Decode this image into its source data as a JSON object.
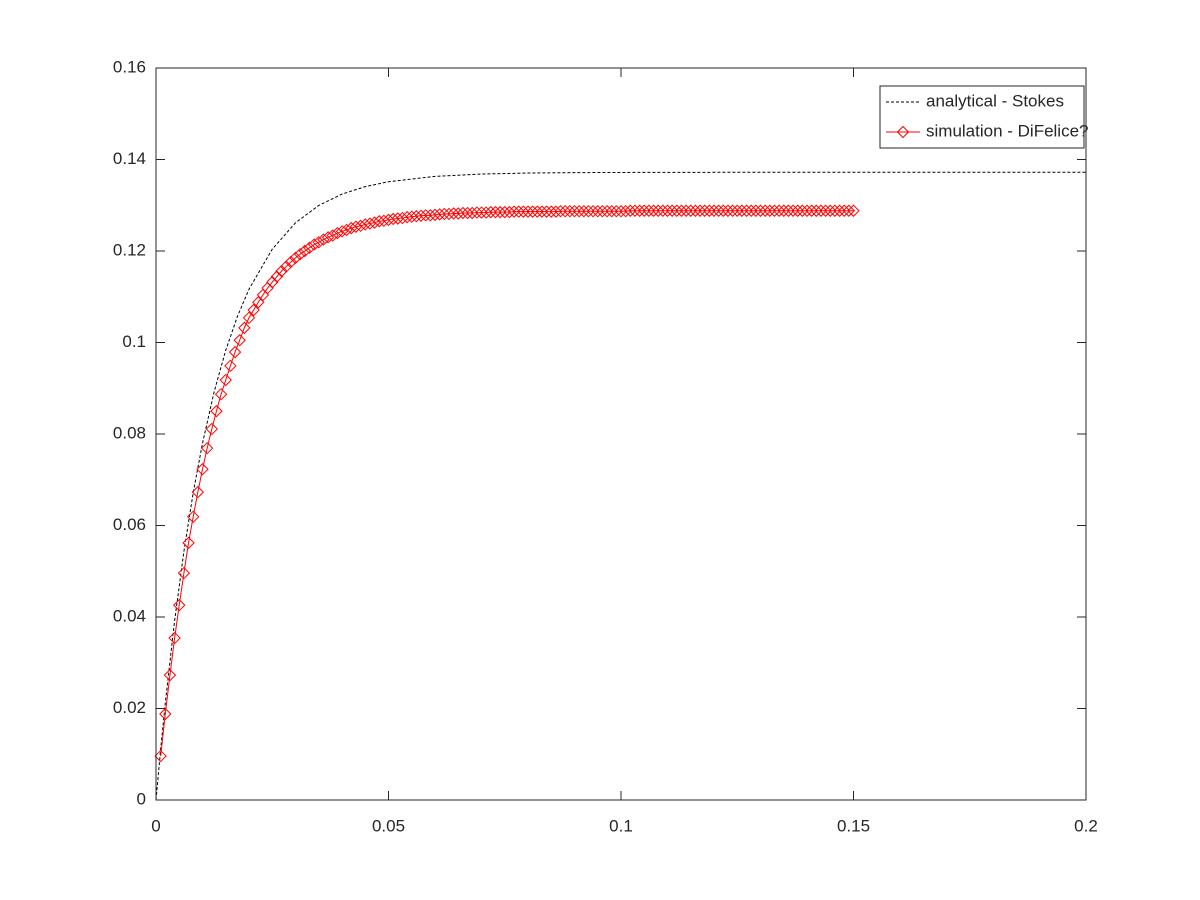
{
  "chart_data": {
    "type": "line",
    "xlim": [
      0,
      0.2
    ],
    "ylim": [
      0,
      0.16
    ],
    "xticks": [
      0,
      0.05,
      0.1,
      0.15,
      0.2
    ],
    "yticks": [
      0,
      0.02,
      0.04,
      0.06,
      0.08,
      0.1,
      0.12,
      0.14,
      0.16
    ],
    "legend": "northeast",
    "series": [
      {
        "name": "analytical - Stokes",
        "color": "#000000",
        "dash": true,
        "marker": "none",
        "x": [
          0,
          0.001,
          0.002,
          0.004,
          0.006,
          0.008,
          0.01,
          0.0125,
          0.015,
          0.0175,
          0.02,
          0.025,
          0.03,
          0.035,
          0.04,
          0.045,
          0.05,
          0.06,
          0.07,
          0.08,
          0.09,
          0.1,
          0.12,
          0.14,
          0.16,
          0.18,
          0.2
        ],
        "values": [
          0,
          0.01106,
          0.02123,
          0.03917,
          0.05433,
          0.06716,
          0.07798,
          0.08921,
          0.0983,
          0.10567,
          0.11165,
          0.12041,
          0.12617,
          0.12996,
          0.13244,
          0.13407,
          0.13514,
          0.13631,
          0.13682,
          0.13704,
          0.13713,
          0.13717,
          0.1372,
          0.1372,
          0.1372,
          0.1372,
          0.1372
        ]
      },
      {
        "name": "simulation - DiFelice?",
        "color": "#ff0000",
        "dash": false,
        "marker": "diamond",
        "x": [
          0.001,
          0.002,
          0.003,
          0.004,
          0.005,
          0.006,
          0.007,
          0.008,
          0.009,
          0.01,
          0.011,
          0.012,
          0.013,
          0.014,
          0.015,
          0.016,
          0.017,
          0.018,
          0.019,
          0.02,
          0.021,
          0.022,
          0.023,
          0.024,
          0.025,
          0.026,
          0.027,
          0.028,
          0.029,
          0.03,
          0.031,
          0.032,
          0.033,
          0.034,
          0.035,
          0.036,
          0.037,
          0.038,
          0.039,
          0.04,
          0.041,
          0.042,
          0.043,
          0.044,
          0.045,
          0.046,
          0.047,
          0.048,
          0.049,
          0.05,
          0.051,
          0.052,
          0.053,
          0.054,
          0.055,
          0.056,
          0.057,
          0.058,
          0.059,
          0.06,
          0.061,
          0.062,
          0.063,
          0.064,
          0.065,
          0.066,
          0.067,
          0.068,
          0.069,
          0.07,
          0.071,
          0.072,
          0.073,
          0.074,
          0.075,
          0.076,
          0.077,
          0.078,
          0.079,
          0.08,
          0.081,
          0.082,
          0.083,
          0.084,
          0.085,
          0.086,
          0.087,
          0.088,
          0.089,
          0.09,
          0.091,
          0.092,
          0.093,
          0.094,
          0.095,
          0.096,
          0.097,
          0.098,
          0.099,
          0.1,
          0.101,
          0.102,
          0.103,
          0.104,
          0.105,
          0.106,
          0.107,
          0.108,
          0.109,
          0.11,
          0.111,
          0.112,
          0.113,
          0.114,
          0.115,
          0.116,
          0.117,
          0.118,
          0.119,
          0.12,
          0.121,
          0.122,
          0.123,
          0.124,
          0.125,
          0.126,
          0.127,
          0.128,
          0.129,
          0.13,
          0.131,
          0.132,
          0.133,
          0.134,
          0.135,
          0.136,
          0.137,
          0.138,
          0.139,
          0.14,
          0.141,
          0.142,
          0.143,
          0.144,
          0.145,
          0.146,
          0.147,
          0.148,
          0.149,
          0.15
        ],
        "values": [
          0.0096,
          0.0188,
          0.0273,
          0.0354,
          0.0426,
          0.0496,
          0.0562,
          0.0619,
          0.0673,
          0.0723,
          0.0769,
          0.0811,
          0.085,
          0.0887,
          0.0918,
          0.0949,
          0.0979,
          0.1005,
          0.1032,
          0.1054,
          0.1071,
          0.1088,
          0.1104,
          0.1119,
          0.1132,
          0.1144,
          0.1156,
          0.1166,
          0.1176,
          0.1185,
          0.1193,
          0.12,
          0.1207,
          0.1214,
          0.1219,
          0.1225,
          0.123,
          0.1234,
          0.1239,
          0.1243,
          0.1246,
          0.125,
          0.1253,
          0.1255,
          0.1258,
          0.126,
          0.1262,
          0.1265,
          0.1266,
          0.1268,
          0.127,
          0.1271,
          0.1272,
          0.1274,
          0.1275,
          0.1276,
          0.1277,
          0.1278,
          0.1278,
          0.1279,
          0.128,
          0.1281,
          0.1281,
          0.1282,
          0.1282,
          0.1283,
          0.1283,
          0.1283,
          0.1284,
          0.1284,
          0.1284,
          0.1285,
          0.1285,
          0.1285,
          0.1285,
          0.1285,
          0.1286,
          0.1286,
          0.1286,
          0.1286,
          0.1286,
          0.1286,
          0.1286,
          0.1286,
          0.1286,
          0.1286,
          0.1287,
          0.1287,
          0.1287,
          0.1287,
          0.1287,
          0.1287,
          0.1287,
          0.1287,
          0.1287,
          0.1287,
          0.1287,
          0.1287,
          0.1287,
          0.1287,
          0.1287,
          0.1288,
          0.1288,
          0.1288,
          0.1288,
          0.1288,
          0.1288,
          0.1288,
          0.1288,
          0.1288,
          0.1288,
          0.1288,
          0.1288,
          0.1288,
          0.1288,
          0.1288,
          0.1288,
          0.1288,
          0.1288,
          0.1288,
          0.1288,
          0.1288,
          0.1288,
          0.1288,
          0.1288,
          0.1288,
          0.1288,
          0.1288,
          0.1288,
          0.1288,
          0.1288,
          0.1288,
          0.1288,
          0.1288,
          0.1288,
          0.1288,
          0.1288,
          0.1288,
          0.1288,
          0.1288,
          0.1288,
          0.1288,
          0.1288,
          0.1288,
          0.1288,
          0.1288,
          0.1288,
          0.1288,
          0.1288,
          0.1288
        ]
      }
    ]
  }
}
